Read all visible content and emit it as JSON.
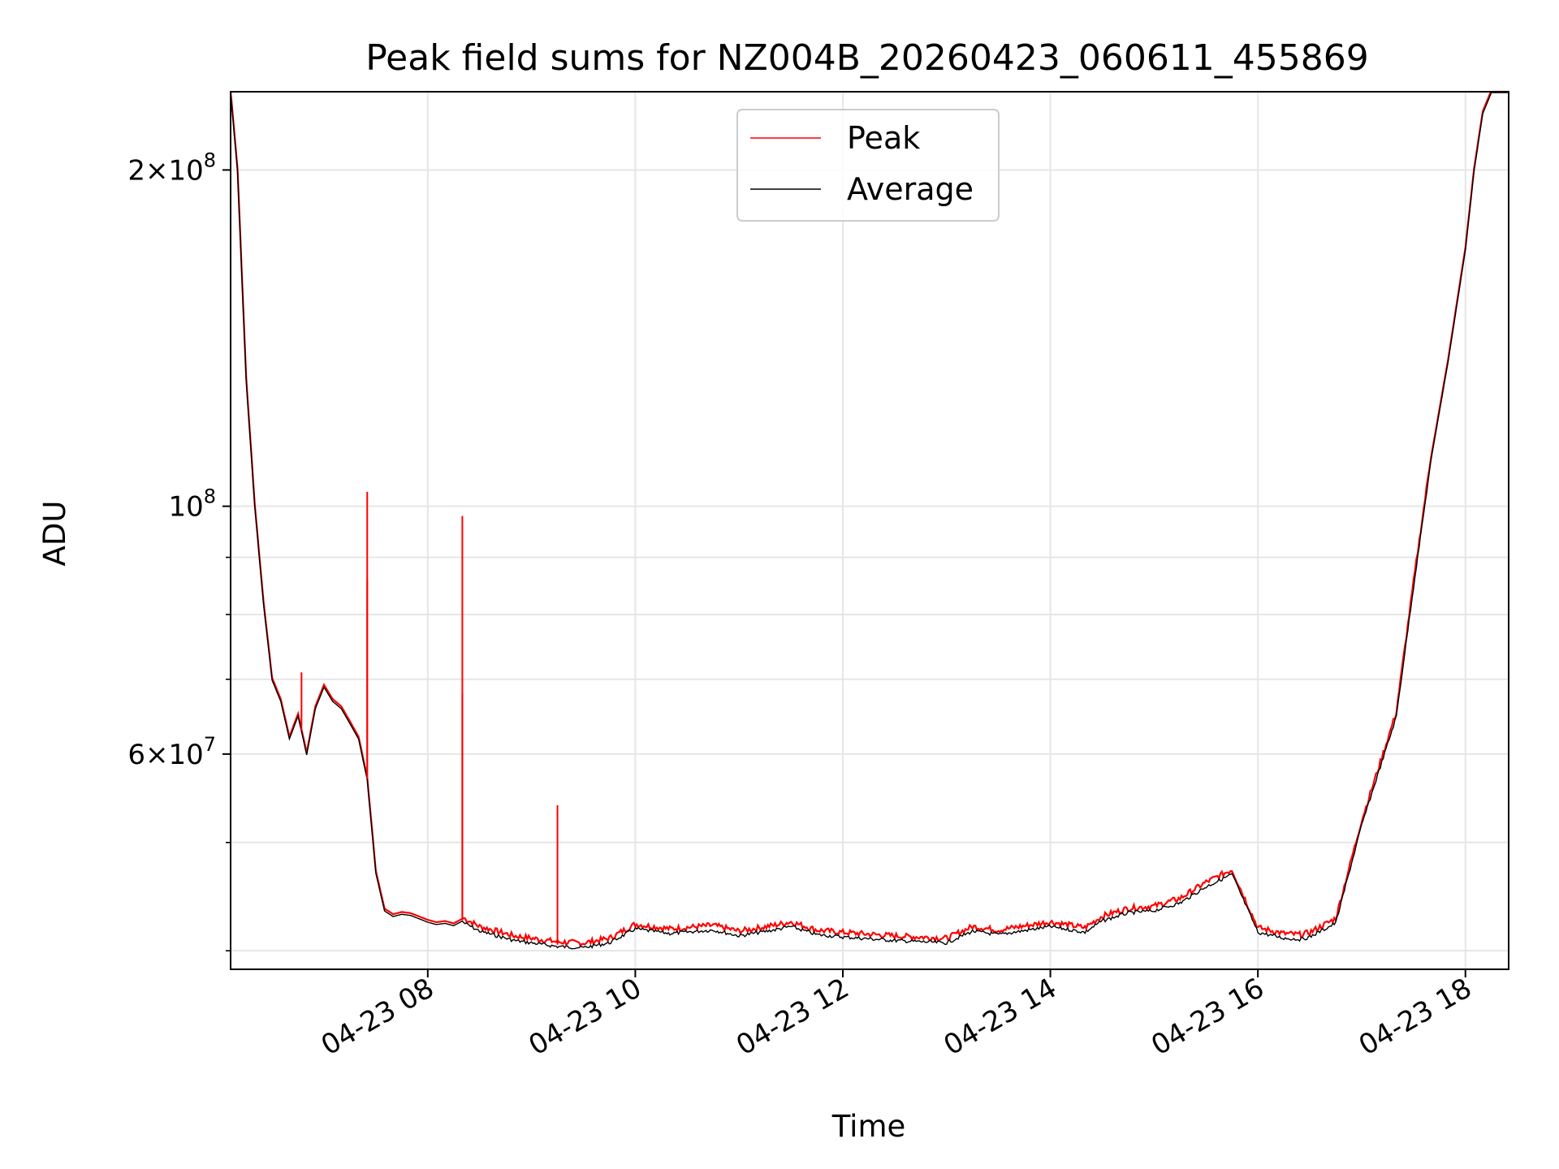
{
  "chart_data": {
    "type": "line",
    "title": "Peak field sums for NZ004B_20260423_060611_455869",
    "xlabel": "Time",
    "ylabel": "ADU",
    "yscale": "log",
    "xlim": [
      "04-23 06:06",
      "04-23 18:25"
    ],
    "ylim": [
      38500000,
      235000000
    ],
    "grid": true,
    "legend_position": "upper center",
    "x_ticks": [
      "04-23 08",
      "04-23 10",
      "04-23 12",
      "04-23 14",
      "04-23 16",
      "04-23 18"
    ],
    "y_major_ticks": [
      {
        "value": 60000000,
        "mantissa": "6",
        "exponent": "7"
      },
      {
        "value": 100000000,
        "mantissa": "",
        "exponent": "8"
      },
      {
        "value": 200000000,
        "mantissa": "2",
        "exponent": "8"
      }
    ],
    "y_minor_ticks": [
      40000000,
      50000000,
      70000000,
      80000000,
      90000000
    ],
    "colors": {
      "peak": "#ff0000",
      "average": "#000000"
    },
    "series": [
      {
        "name": "Average",
        "x": [
          "06:06",
          "06:10",
          "06:15",
          "06:20",
          "06:25",
          "06:30",
          "06:35",
          "06:40",
          "06:45",
          "06:50",
          "06:55",
          "07:00",
          "07:05",
          "07:10",
          "07:15",
          "07:20",
          "07:25",
          "07:30",
          "07:35",
          "07:40",
          "07:45",
          "07:50",
          "07:55",
          "08:00",
          "08:05",
          "08:10",
          "08:15",
          "08:20",
          "08:30",
          "08:40",
          "08:50",
          "09:00",
          "09:15",
          "09:30",
          "09:45",
          "10:00",
          "10:20",
          "10:45",
          "11:00",
          "11:20",
          "11:30",
          "11:45",
          "12:00",
          "12:30",
          "13:00",
          "13:15",
          "13:30",
          "14:00",
          "14:20",
          "14:30",
          "14:45",
          "15:00",
          "15:15",
          "15:30",
          "15:45",
          "16:00",
          "16:15",
          "16:25",
          "16:30",
          "16:45",
          "17:00",
          "17:20",
          "17:30",
          "17:40",
          "17:50",
          "18:00",
          "18:05",
          "18:10",
          "18:15",
          "18:25"
        ],
        "y": [
          235000000,
          200000000,
          130000000,
          100000000,
          82000000,
          70000000,
          67000000,
          62000000,
          65000000,
          60000000,
          66000000,
          69000000,
          67000000,
          66000000,
          64000000,
          62000000,
          57000000,
          47000000,
          43500000,
          43000000,
          43200000,
          43100000,
          42800000,
          42500000,
          42300000,
          42400000,
          42200000,
          42600000,
          41800000,
          41400000,
          41000000,
          40800000,
          40500000,
          40400000,
          40800000,
          42000000,
          41600000,
          41900000,
          41400000,
          41900000,
          42200000,
          41500000,
          41300000,
          41000000,
          40800000,
          41800000,
          41500000,
          42200000,
          41700000,
          42700000,
          43400000,
          43600000,
          44300000,
          45800000,
          47000000,
          41700000,
          41200000,
          41100000,
          41300000,
          42500000,
          52000000,
          65000000,
          85000000,
          110000000,
          135000000,
          170000000,
          200000000,
          225000000,
          235000000,
          235000000
        ]
      },
      {
        "name": "Peak",
        "spikes": [
          {
            "x": "07:25",
            "y": 103000000
          },
          {
            "x": "07:25",
            "y": 86000000
          },
          {
            "x": "08:20",
            "y": 98000000
          },
          {
            "x": "08:20",
            "y": 68000000
          },
          {
            "x": "09:15",
            "y": 54000000
          },
          {
            "x": "06:47",
            "y": 71000000
          }
        ]
      }
    ]
  }
}
